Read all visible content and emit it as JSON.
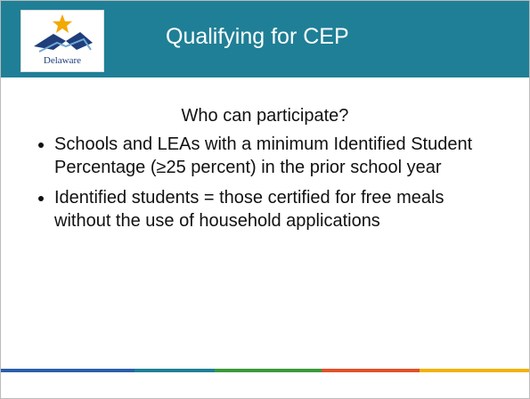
{
  "header": {
    "logo_text": "Delaware",
    "title": "Qualifying for CEP"
  },
  "body": {
    "subtitle": "Who can participate?",
    "bullets": [
      "Schools and LEAs with a minimum Identified Student Percentage (≥25 percent) in the prior school year",
      "Identified students = those certified for free meals without the use of household applications"
    ]
  }
}
